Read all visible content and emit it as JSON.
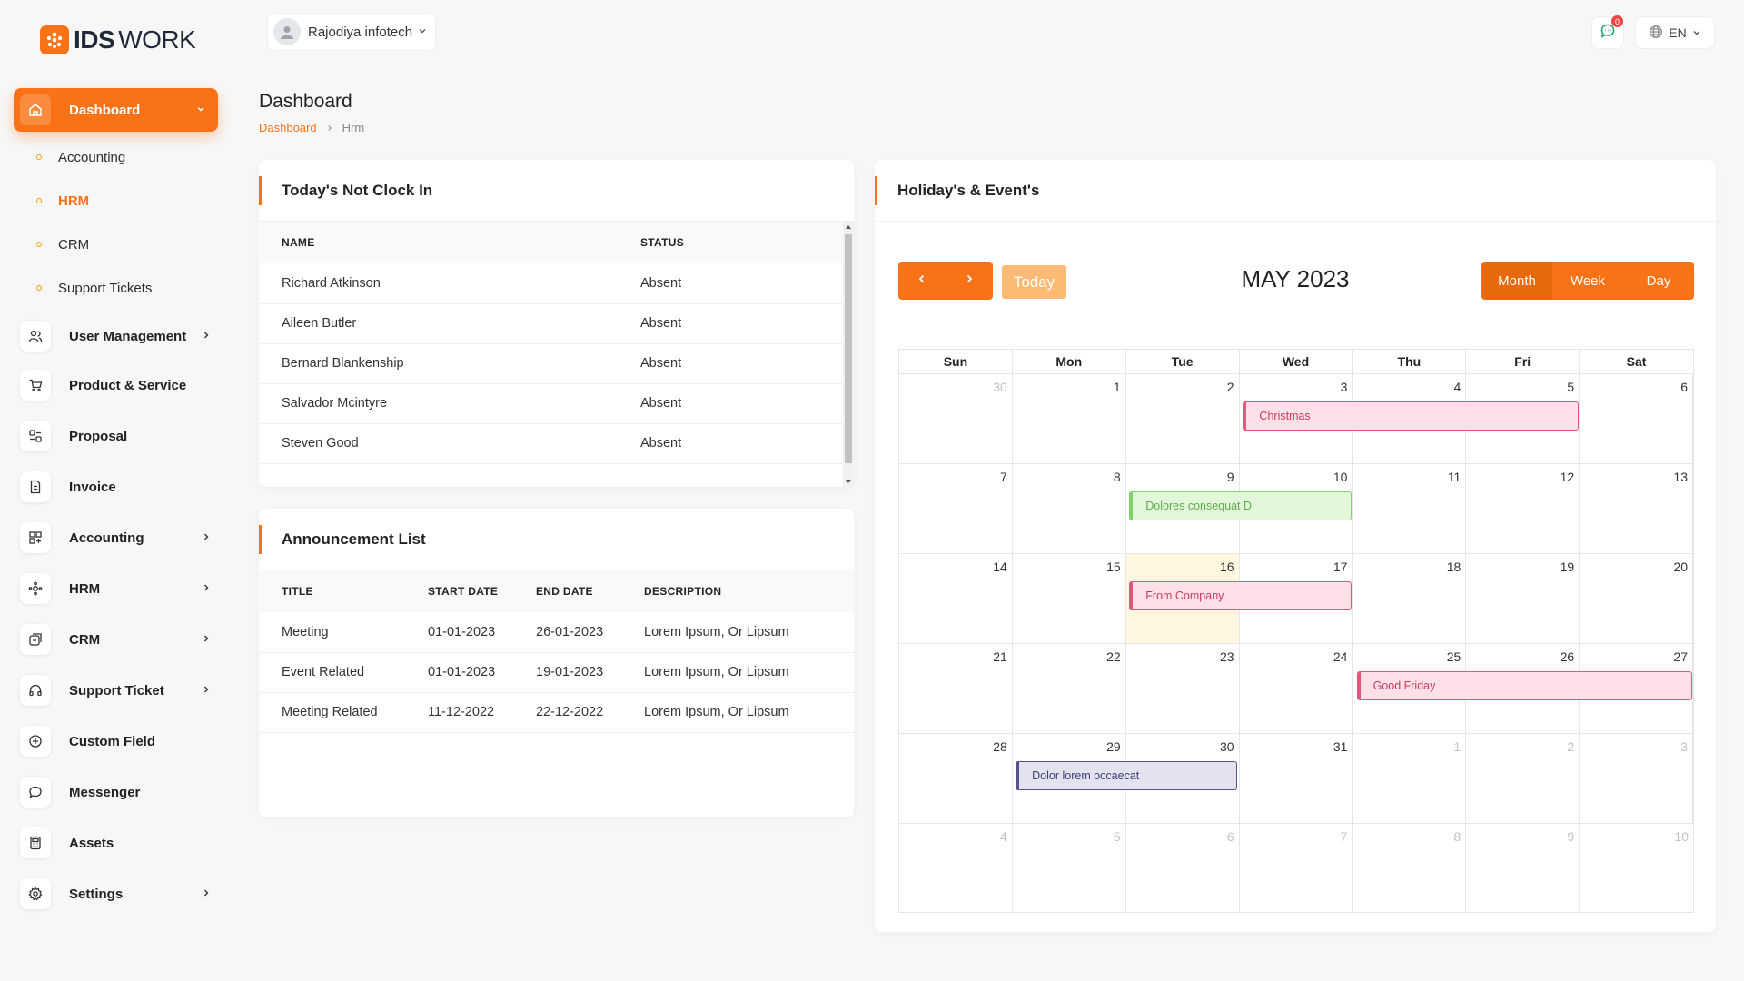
{
  "brand": {
    "bold": "IDS",
    "rest": "WORK",
    "accent": "#f97316"
  },
  "sidebar": {
    "active": {
      "label": "Dashboard",
      "icon": "home-icon"
    },
    "subitems": [
      {
        "label": "Accounting",
        "active": false
      },
      {
        "label": "HRM",
        "active": true
      },
      {
        "label": "CRM",
        "active": false
      },
      {
        "label": "Support Tickets",
        "active": false
      }
    ],
    "items": [
      {
        "label": "User Management",
        "icon": "users-icon",
        "has_children": true
      },
      {
        "label": "Product & Service",
        "icon": "cart-icon",
        "has_children": false
      },
      {
        "label": "Proposal",
        "icon": "proposal-icon",
        "has_children": false
      },
      {
        "label": "Invoice",
        "icon": "invoice-icon",
        "has_children": false
      },
      {
        "label": "Accounting",
        "icon": "grid-icon",
        "has_children": true
      },
      {
        "label": "HRM",
        "icon": "hrm-icon",
        "has_children": true
      },
      {
        "label": "CRM",
        "icon": "crm-icon",
        "has_children": true
      },
      {
        "label": "Support Ticket",
        "icon": "headphones-icon",
        "has_children": true
      },
      {
        "label": "Custom Field",
        "icon": "plus-circle-icon",
        "has_children": false
      },
      {
        "label": "Messenger",
        "icon": "chat-icon",
        "has_children": false
      },
      {
        "label": "Assets",
        "icon": "calculator-icon",
        "has_children": false
      },
      {
        "label": "Settings",
        "icon": "gear-icon",
        "has_children": true
      }
    ]
  },
  "topbar": {
    "company": "Rajodiya infotech",
    "messages_count": "0",
    "language": "EN"
  },
  "page": {
    "title": "Dashboard",
    "breadcrumb": [
      "Dashboard",
      "Hrm"
    ]
  },
  "not_clock_in": {
    "title": "Today's Not Clock In",
    "columns": [
      "NAME",
      "STATUS"
    ],
    "rows": [
      [
        "Richard Atkinson",
        "Absent"
      ],
      [
        "Aileen Butler",
        "Absent"
      ],
      [
        "Bernard Blankenship",
        "Absent"
      ],
      [
        "Salvador Mcintyre",
        "Absent"
      ],
      [
        "Steven Good",
        "Absent"
      ]
    ]
  },
  "announcements": {
    "title": "Announcement List",
    "columns": [
      "TITLE",
      "START DATE",
      "END DATE",
      "DESCRIPTION"
    ],
    "rows": [
      [
        "Meeting",
        "01-01-2023",
        "26-01-2023",
        "Lorem Ipsum, Or Lipsum"
      ],
      [
        "Event Related",
        "01-01-2023",
        "19-01-2023",
        "Lorem Ipsum, Or Lipsum"
      ],
      [
        "Meeting Related",
        "11-12-2022",
        "22-12-2022",
        "Lorem Ipsum, Or Lipsum"
      ]
    ]
  },
  "calendar": {
    "title": "Holiday's & Event's",
    "month_label": "MAY 2023",
    "today_label": "Today",
    "views": [
      "Month",
      "Week",
      "Day"
    ],
    "active_view": "Month",
    "weekdays": [
      "Sun",
      "Mon",
      "Tue",
      "Wed",
      "Thu",
      "Fri",
      "Sat"
    ],
    "weeks": [
      [
        "30",
        "1",
        "2",
        "3",
        "4",
        "5",
        "6"
      ],
      [
        "7",
        "8",
        "9",
        "10",
        "11",
        "12",
        "13"
      ],
      [
        "14",
        "15",
        "16",
        "17",
        "18",
        "19",
        "20"
      ],
      [
        "21",
        "22",
        "23",
        "24",
        "25",
        "26",
        "27"
      ],
      [
        "28",
        "29",
        "30",
        "31",
        "1",
        "2",
        "3"
      ],
      [
        "4",
        "5",
        "6",
        "7",
        "8",
        "9",
        "10"
      ]
    ],
    "today_date": "16",
    "events": [
      {
        "title": "Christmas",
        "week": 0,
        "start_day": 3,
        "span": 3,
        "color": "pink"
      },
      {
        "title": "Dolores consequat D",
        "week": 1,
        "start_day": 2,
        "span": 2,
        "color": "green"
      },
      {
        "title": "From Company",
        "week": 2,
        "start_day": 2,
        "span": 2,
        "color": "pink"
      },
      {
        "title": "Good Friday",
        "week": 3,
        "start_day": 4,
        "span": 3,
        "color": "pink"
      },
      {
        "title": "Dolor lorem occaecat",
        "week": 4,
        "start_day": 1,
        "span": 2,
        "color": "purple"
      }
    ]
  }
}
